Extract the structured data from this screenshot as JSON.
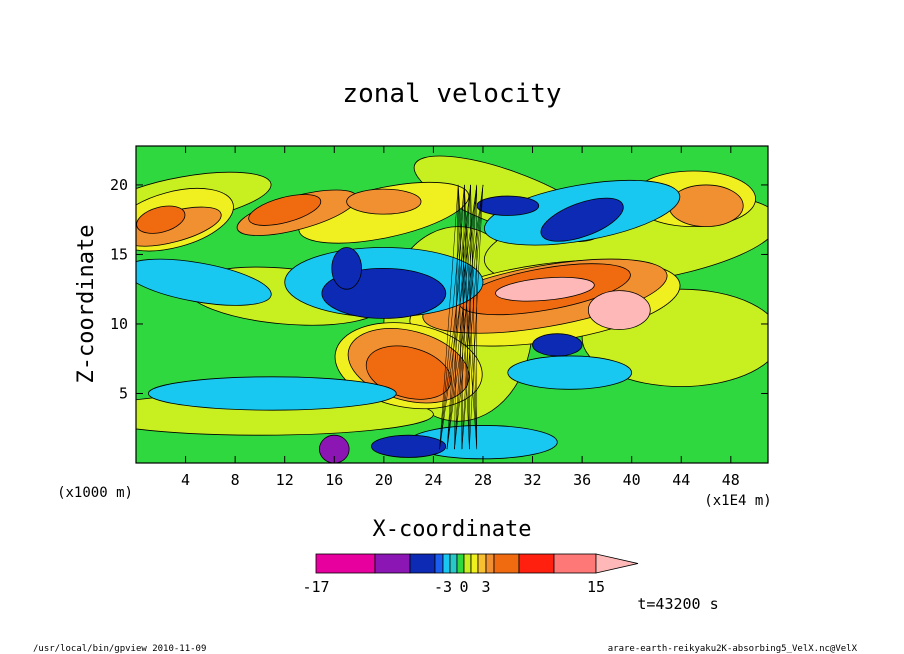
{
  "chart_data": {
    "type": "heatmap",
    "title": "zonal velocity",
    "xlabel": "X-coordinate",
    "ylabel": "Z-coordinate",
    "x_scale_note": "(x1E4 m)",
    "y_scale_note": "(x1000 m)",
    "xlim": [
      0,
      51
    ],
    "ylim": [
      0,
      22.8
    ],
    "x_ticks": [
      4,
      8,
      12,
      16,
      20,
      24,
      28,
      32,
      36,
      40,
      44,
      48
    ],
    "y_ticks": [
      5,
      10,
      15,
      20
    ],
    "colorbar": {
      "levels": [
        -17,
        -12,
        -9,
        -6,
        -3,
        -2,
        -1,
        0,
        1,
        2,
        3,
        6,
        9,
        12,
        15
      ],
      "labels": [
        "-17",
        "-3",
        "0",
        "3",
        "15"
      ],
      "colors": [
        "#e8009e",
        "#8c16b4",
        "#0c2ab4",
        "#1a5ef0",
        "#18c8f0",
        "#28c8c8",
        "#30d840",
        "#c8f020",
        "#f0f020",
        "#f8c030",
        "#f09030",
        "#f06a10",
        "#ff2010",
        "#ff7878"
      ],
      "overflow_color": "#ffb8b8"
    },
    "annotation": "t=43200 s"
  },
  "footer": {
    "left": "/usr/local/bin/gpview  2010-11-09",
    "right": "arare-earth-reikyaku2K-absorbing5_VelX.nc@VelX"
  }
}
